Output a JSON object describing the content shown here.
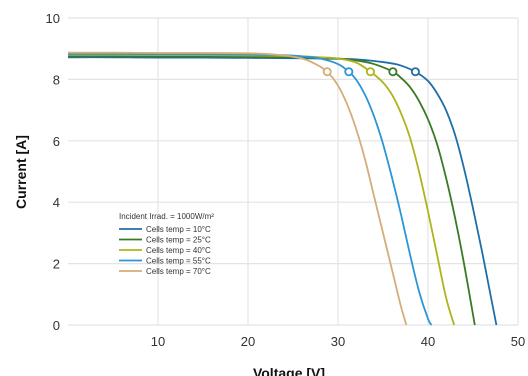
{
  "chart_data": {
    "type": "line",
    "xlabel": "Voltage [V]",
    "ylabel": "Current [A]",
    "xlim": [
      0,
      50
    ],
    "ylim": [
      0,
      10
    ],
    "x_ticks": [
      10,
      20,
      30,
      40,
      50
    ],
    "y_ticks": [
      0,
      2,
      4,
      6,
      8,
      10
    ],
    "grid": true,
    "legend_position": "lower-left",
    "legend_title": "Incident Irrad. = 1000W/m²",
    "marker_current": 8.25,
    "series": [
      {
        "name": "Cells temp = 10°C",
        "color": "#1f6fa6",
        "x": [
          0,
          5,
          10,
          15,
          20,
          25,
          30,
          32,
          34,
          36,
          37,
          38.6,
          40,
          41,
          42,
          43,
          44,
          45,
          46,
          47,
          47.6
        ],
        "y": [
          8.72,
          8.72,
          8.71,
          8.71,
          8.7,
          8.69,
          8.67,
          8.65,
          8.6,
          8.52,
          8.45,
          8.25,
          7.95,
          7.55,
          7.0,
          6.2,
          5.1,
          3.8,
          2.4,
          0.9,
          0.0
        ],
        "mpp": 38.6
      },
      {
        "name": "Cells temp = 25°C",
        "color": "#3a7a22",
        "x": [
          0,
          5,
          10,
          15,
          20,
          25,
          28,
          30,
          32,
          34,
          36.1,
          37,
          38,
          39,
          40,
          41,
          42,
          43,
          44,
          45.2
        ],
        "y": [
          8.76,
          8.76,
          8.75,
          8.75,
          8.74,
          8.72,
          8.7,
          8.68,
          8.62,
          8.5,
          8.25,
          8.05,
          7.75,
          7.3,
          6.7,
          5.9,
          4.8,
          3.5,
          2.0,
          0.0
        ],
        "mpp": 36.1
      },
      {
        "name": "Cells temp = 40°C",
        "color": "#b0b41c",
        "x": [
          0,
          5,
          10,
          15,
          20,
          25,
          28,
          30,
          32,
          33.6,
          35,
          36,
          37,
          38,
          39,
          40,
          41,
          42,
          42.9
        ],
        "y": [
          8.8,
          8.8,
          8.79,
          8.79,
          8.78,
          8.76,
          8.72,
          8.68,
          8.55,
          8.25,
          7.9,
          7.5,
          6.9,
          6.1,
          5.0,
          3.7,
          2.3,
          0.9,
          0.0
        ],
        "mpp": 33.6
      },
      {
        "name": "Cells temp = 55°C",
        "color": "#2a95d8",
        "x": [
          0,
          5,
          10,
          15,
          20,
          24,
          26,
          28,
          30,
          31.2,
          32,
          33,
          34,
          35,
          36,
          37,
          38,
          39,
          40,
          40.4
        ],
        "y": [
          8.83,
          8.83,
          8.82,
          8.82,
          8.81,
          8.79,
          8.75,
          8.68,
          8.5,
          8.25,
          8.0,
          7.5,
          6.8,
          5.9,
          4.8,
          3.6,
          2.3,
          1.1,
          0.2,
          0.0
        ],
        "mpp": 31.2
      },
      {
        "name": "Cells temp = 70°C",
        "color": "#d4ad78",
        "x": [
          0,
          5,
          10,
          15,
          20,
          22,
          24,
          26,
          27.5,
          28.8,
          30,
          31,
          32,
          33,
          34,
          35,
          36,
          37,
          37.6
        ],
        "y": [
          8.87,
          8.87,
          8.86,
          8.86,
          8.85,
          8.83,
          8.78,
          8.68,
          8.5,
          8.25,
          7.8,
          7.2,
          6.4,
          5.4,
          4.2,
          3.0,
          1.8,
          0.6,
          0.0
        ],
        "mpp": 28.8
      }
    ]
  }
}
